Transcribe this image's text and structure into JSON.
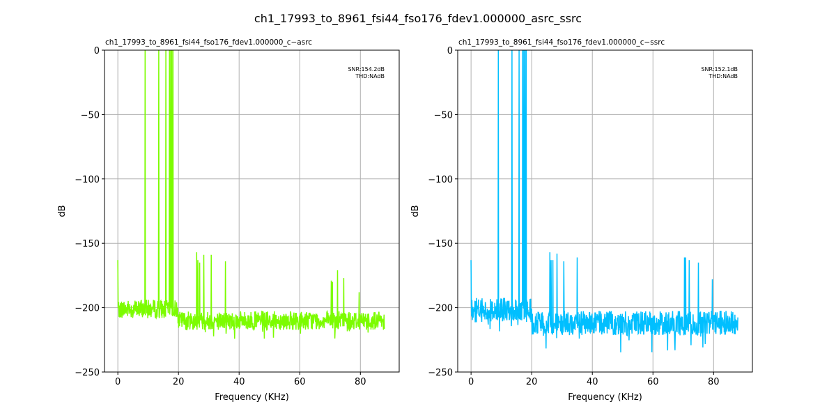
{
  "figure_title": "ch1_17993_to_8961_fsi44_fso176_fdev1.000000_asrc_ssrc",
  "chart_data": [
    {
      "type": "line",
      "title": "ch1_17993_to_8961_fsi44_fso176_fdev1.000000_c-asrc",
      "xlabel": "Frequency (KHz)",
      "ylabel": "dB",
      "xlim": [
        -4.4,
        92.8
      ],
      "ylim": [
        -250,
        0
      ],
      "xticks": [
        0,
        20,
        40,
        60,
        80
      ],
      "yticks": [
        0,
        -50,
        -100,
        -150,
        -200,
        -250
      ],
      "grid": true,
      "color": "#7cfc00",
      "annotation": [
        "SNR:154.2dB",
        "THD:NAdB"
      ],
      "noise_floor": {
        "x_range": [
          0,
          88
        ],
        "mean_low_band": -201,
        "mean_high_band": -210,
        "band_split_khz": 20,
        "spread_db": 9,
        "seed": 7
      },
      "spikes": [
        [
          0,
          -163
        ],
        [
          9,
          0
        ],
        [
          13.5,
          0
        ],
        [
          15.8,
          0
        ],
        [
          17,
          0
        ],
        [
          17.4,
          0
        ],
        [
          17.8,
          0
        ],
        [
          18.2,
          0
        ],
        [
          26,
          -157
        ],
        [
          26.4,
          -163
        ],
        [
          27,
          -165
        ],
        [
          28.4,
          -159
        ],
        [
          30.8,
          -159
        ],
        [
          35.5,
          -164
        ],
        [
          70.4,
          -179
        ],
        [
          70.8,
          -180
        ],
        [
          72.5,
          -171
        ],
        [
          74.5,
          -177
        ],
        [
          79.6,
          -188
        ]
      ]
    },
    {
      "type": "line",
      "title": "ch1_17993_to_8961_fsi44_fso176_fdev1.000000_c-ssrc",
      "xlabel": "Frequency (KHz)",
      "ylabel": "dB",
      "xlim": [
        -4.4,
        92.8
      ],
      "ylim": [
        -250,
        0
      ],
      "xticks": [
        0,
        20,
        40,
        60,
        80
      ],
      "yticks": [
        0,
        -50,
        -100,
        -150,
        -200,
        -250
      ],
      "grid": true,
      "color": "#00bfff",
      "annotation": [
        "SNR:152.1dB",
        "THD:NAdB"
      ],
      "noise_floor": {
        "x_range": [
          0,
          88
        ],
        "mean_low_band": -202,
        "mean_high_band": -212,
        "band_split_khz": 20,
        "spread_db": 12,
        "seed": 13
      },
      "spikes": [
        [
          0,
          -163
        ],
        [
          9,
          0
        ],
        [
          13.5,
          0
        ],
        [
          15.8,
          0
        ],
        [
          17,
          0
        ],
        [
          17.4,
          0
        ],
        [
          17.8,
          0
        ],
        [
          18.2,
          0
        ],
        [
          26,
          -157
        ],
        [
          26.4,
          -163
        ],
        [
          27,
          -163
        ],
        [
          28.4,
          -158
        ],
        [
          30.6,
          -164
        ],
        [
          35,
          -161
        ],
        [
          70.4,
          -161
        ],
        [
          70.8,
          -161
        ],
        [
          72,
          -163
        ],
        [
          75,
          -165
        ],
        [
          79.6,
          -178
        ]
      ]
    }
  ]
}
